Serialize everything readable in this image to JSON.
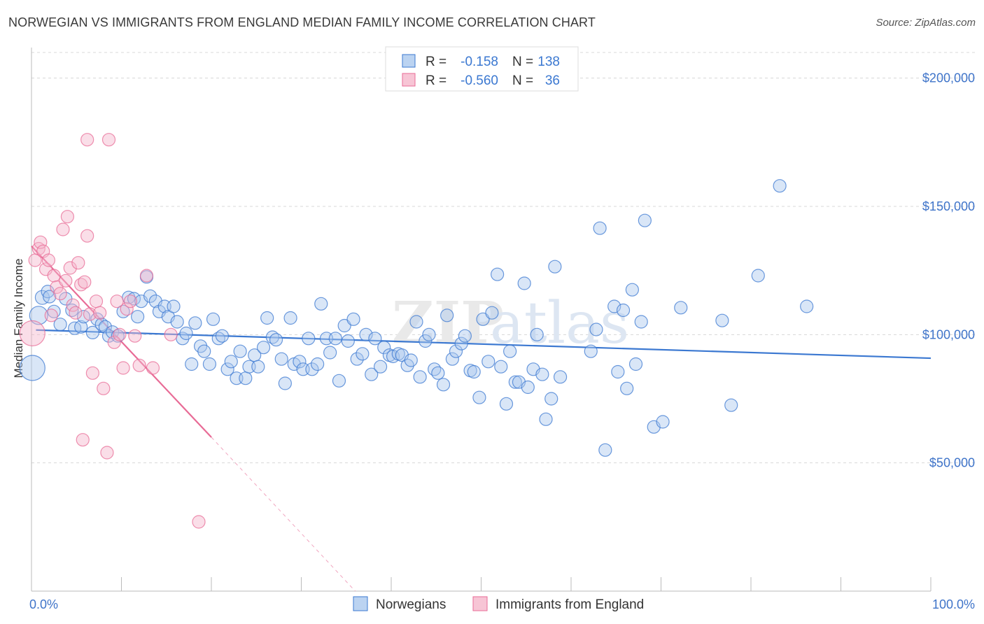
{
  "title": "NORWEGIAN VS IMMIGRANTS FROM ENGLAND MEDIAN FAMILY INCOME CORRELATION CHART",
  "source": "Source: ZipAtlas.com",
  "watermark": {
    "zip": "ZIP",
    "atlas": "atlas"
  },
  "colors": {
    "blue": "#3b78d1",
    "blue_fill": "#aac8ee",
    "pink": "#e86b96",
    "pink_fill": "#f5b6cb",
    "grid": "#d8d8d8",
    "axis_text": "#3f74c9"
  },
  "legend": {
    "rows": [
      {
        "r_label": "R =",
        "r_value": "-0.158",
        "n_label": "N =",
        "n_value": "138",
        "color": "blue"
      },
      {
        "r_label": "R =",
        "r_value": "-0.560",
        "n_label": "N =",
        "n_value": "36",
        "color": "pink"
      }
    ]
  },
  "bottom_legend": [
    {
      "label": "Norwegians",
      "color": "blue"
    },
    {
      "label": "Immigrants from England",
      "color": "pink"
    }
  ],
  "chart_data": {
    "type": "scatter",
    "title": "NORWEGIAN VS IMMIGRANTS FROM ENGLAND MEDIAN FAMILY INCOME CORRELATION CHART",
    "xlabel": "",
    "ylabel": "Median Family Income",
    "xlim": [
      0,
      100
    ],
    "ylim": [
      0,
      210000
    ],
    "x_tick_labels": [
      "0.0%",
      "100.0%"
    ],
    "y_ticks": [
      50000,
      100000,
      150000,
      200000
    ],
    "y_tick_labels": [
      "$50,000",
      "$100,000",
      "$150,000",
      "$200,000"
    ],
    "grid": true,
    "legend_position": "top-center",
    "series": [
      {
        "name": "Norwegians",
        "color": "blue",
        "trend": {
          "x": [
            0.5,
            100
          ],
          "y": [
            101800,
            90800
          ],
          "style": "solid"
        },
        "points": [
          [
            0.1,
            87000,
            18
          ],
          [
            0.8,
            107500,
            13
          ],
          [
            1.2,
            114500,
            10
          ],
          [
            1.8,
            116800,
            9
          ],
          [
            2.0,
            114800,
            9
          ],
          [
            2.5,
            109000,
            9
          ],
          [
            3.2,
            104000,
            9
          ],
          [
            3.8,
            114000,
            9
          ],
          [
            4.5,
            109500,
            9
          ],
          [
            4.8,
            102500,
            9
          ],
          [
            5.5,
            103000,
            9
          ],
          [
            5.8,
            107000,
            9
          ],
          [
            6.8,
            100800,
            9
          ],
          [
            7.3,
            106000,
            9
          ],
          [
            7.8,
            104000,
            9
          ],
          [
            8.2,
            103000,
            9
          ],
          [
            8.6,
            99500,
            9
          ],
          [
            9.0,
            101000,
            9
          ],
          [
            9.6,
            99500,
            9
          ],
          [
            10.2,
            109000,
            9
          ],
          [
            10.8,
            114500,
            9
          ],
          [
            11.4,
            114000,
            9
          ],
          [
            11.8,
            107000,
            9
          ],
          [
            12.2,
            113000,
            9
          ],
          [
            12.8,
            122500,
            9
          ],
          [
            13.2,
            115000,
            9
          ],
          [
            13.8,
            113000,
            9
          ],
          [
            14.2,
            109000,
            9
          ],
          [
            14.8,
            111000,
            9
          ],
          [
            15.2,
            107000,
            9
          ],
          [
            15.8,
            111000,
            9
          ],
          [
            16.2,
            105000,
            9
          ],
          [
            16.8,
            98500,
            9
          ],
          [
            17.2,
            100500,
            9
          ],
          [
            17.8,
            88500,
            9
          ],
          [
            18.2,
            104500,
            9
          ],
          [
            18.8,
            95500,
            9
          ],
          [
            19.2,
            93500,
            9
          ],
          [
            19.8,
            88500,
            9
          ],
          [
            20.2,
            106000,
            9
          ],
          [
            20.8,
            98500,
            9
          ],
          [
            21.2,
            99500,
            9
          ],
          [
            21.8,
            86500,
            9
          ],
          [
            22.2,
            89500,
            9
          ],
          [
            22.8,
            83000,
            9
          ],
          [
            23.2,
            93500,
            9
          ],
          [
            23.8,
            83000,
            9
          ],
          [
            24.2,
            87500,
            9
          ],
          [
            24.8,
            92000,
            9
          ],
          [
            25.2,
            87500,
            9
          ],
          [
            25.8,
            95000,
            9
          ],
          [
            26.2,
            106500,
            9
          ],
          [
            26.8,
            99000,
            9
          ],
          [
            27.2,
            98000,
            9
          ],
          [
            27.8,
            90500,
            9
          ],
          [
            28.2,
            81000,
            9
          ],
          [
            28.8,
            106500,
            9
          ],
          [
            29.2,
            88500,
            9
          ],
          [
            29.8,
            89500,
            9
          ],
          [
            30.2,
            86500,
            9
          ],
          [
            30.8,
            98500,
            9
          ],
          [
            31.2,
            86500,
            9
          ],
          [
            31.8,
            88500,
            9
          ],
          [
            32.2,
            112000,
            9
          ],
          [
            32.8,
            98500,
            9
          ],
          [
            33.2,
            93000,
            9
          ],
          [
            33.8,
            98500,
            9
          ],
          [
            34.2,
            82000,
            9
          ],
          [
            34.8,
            103500,
            9
          ],
          [
            35.2,
            97500,
            9
          ],
          [
            35.8,
            106000,
            9
          ],
          [
            36.2,
            90500,
            9
          ],
          [
            36.8,
            92500,
            9
          ],
          [
            37.2,
            100000,
            9
          ],
          [
            37.8,
            84500,
            9
          ],
          [
            38.2,
            98500,
            9
          ],
          [
            38.8,
            87500,
            9
          ],
          [
            39.2,
            95000,
            9
          ],
          [
            39.8,
            92000,
            9
          ],
          [
            40.2,
            91500,
            9
          ],
          [
            40.8,
            92500,
            9
          ],
          [
            41.2,
            92000,
            9
          ],
          [
            41.8,
            88000,
            9
          ],
          [
            42.2,
            90000,
            9
          ],
          [
            42.8,
            105000,
            9
          ],
          [
            43.2,
            83500,
            9
          ],
          [
            43.8,
            97500,
            9
          ],
          [
            44.2,
            100000,
            9
          ],
          [
            44.8,
            86500,
            9
          ],
          [
            45.2,
            85000,
            9
          ],
          [
            45.8,
            80500,
            9
          ],
          [
            46.2,
            107500,
            9
          ],
          [
            46.8,
            90500,
            9
          ],
          [
            47.2,
            93500,
            9
          ],
          [
            47.8,
            96500,
            9
          ],
          [
            48.2,
            99500,
            9
          ],
          [
            48.8,
            86000,
            9
          ],
          [
            49.2,
            85500,
            9
          ],
          [
            49.8,
            75500,
            9
          ],
          [
            50.2,
            106000,
            9
          ],
          [
            50.8,
            89500,
            9
          ],
          [
            51.2,
            108500,
            9
          ],
          [
            51.8,
            123500,
            9
          ],
          [
            52.2,
            87500,
            9
          ],
          [
            52.8,
            73000,
            9
          ],
          [
            53.2,
            93500,
            9
          ],
          [
            53.8,
            81500,
            9
          ],
          [
            54.2,
            81500,
            9
          ],
          [
            54.8,
            120000,
            9
          ],
          [
            55.2,
            79500,
            9
          ],
          [
            55.8,
            86500,
            9
          ],
          [
            56.2,
            100000,
            9
          ],
          [
            56.8,
            84500,
            9
          ],
          [
            57.2,
            67000,
            9
          ],
          [
            57.8,
            75000,
            9
          ],
          [
            58.2,
            126500,
            9
          ],
          [
            58.8,
            83500,
            9
          ],
          [
            62.2,
            93500,
            9
          ],
          [
            62.8,
            102000,
            9
          ],
          [
            63.2,
            141500,
            9
          ],
          [
            63.8,
            55000,
            9
          ],
          [
            64.8,
            111000,
            9
          ],
          [
            65.2,
            85500,
            9
          ],
          [
            65.8,
            109500,
            9
          ],
          [
            66.2,
            79000,
            9
          ],
          [
            66.8,
            117500,
            9
          ],
          [
            67.2,
            88500,
            9
          ],
          [
            67.8,
            105000,
            9
          ],
          [
            68.2,
            144500,
            9
          ],
          [
            69.2,
            64000,
            9
          ],
          [
            70.2,
            66000,
            9
          ],
          [
            72.2,
            110500,
            9
          ],
          [
            76.8,
            105500,
            9
          ],
          [
            77.8,
            72500,
            9
          ],
          [
            80.8,
            123000,
            9
          ],
          [
            83.2,
            158000,
            9
          ],
          [
            86.2,
            111000,
            9
          ]
        ]
      },
      {
        "name": "Immigrants from England",
        "color": "pink",
        "trend": {
          "x": [
            0,
            20
          ],
          "y": [
            134500,
            60000
          ],
          "style": "solid",
          "extended_x": [
            20,
            36
          ],
          "extended_y": [
            60000,
            0
          ],
          "extended_style": "dashed"
        },
        "points": [
          [
            0.1,
            100500,
            18
          ],
          [
            0.4,
            129000,
            9
          ],
          [
            0.8,
            133500,
            9
          ],
          [
            1.0,
            136000,
            9
          ],
          [
            1.3,
            132500,
            9
          ],
          [
            1.6,
            125500,
            9
          ],
          [
            1.9,
            129000,
            9
          ],
          [
            2.2,
            107500,
            9
          ],
          [
            2.5,
            123000,
            9
          ],
          [
            2.8,
            118500,
            9
          ],
          [
            3.2,
            116000,
            9
          ],
          [
            3.5,
            141000,
            9
          ],
          [
            3.8,
            121000,
            9
          ],
          [
            4.0,
            146000,
            9
          ],
          [
            4.3,
            126000,
            9
          ],
          [
            4.6,
            111500,
            9
          ],
          [
            4.9,
            108500,
            9
          ],
          [
            5.2,
            128000,
            9
          ],
          [
            5.5,
            119500,
            9
          ],
          [
            5.9,
            120500,
            9
          ],
          [
            6.2,
            138500,
            9
          ],
          [
            6.5,
            108000,
            9
          ],
          [
            6.8,
            85000,
            9
          ],
          [
            7.2,
            113000,
            9
          ],
          [
            7.6,
            108500,
            9
          ],
          [
            8.0,
            79000,
            9
          ],
          [
            8.4,
            54000,
            9
          ],
          [
            9.2,
            97000,
            9
          ],
          [
            9.5,
            113000,
            9
          ],
          [
            9.8,
            100000,
            9
          ],
          [
            10.2,
            87000,
            9
          ],
          [
            10.6,
            110000,
            9
          ],
          [
            11.0,
            113000,
            9
          ],
          [
            11.5,
            99500,
            9
          ],
          [
            12.0,
            88000,
            9
          ],
          [
            12.8,
            123000,
            9
          ],
          [
            13.5,
            87000,
            9
          ],
          [
            15.5,
            100000,
            9
          ],
          [
            5.7,
            59000,
            9
          ],
          [
            6.2,
            176000,
            9
          ],
          [
            8.6,
            176000,
            9
          ],
          [
            18.6,
            27000,
            9
          ]
        ]
      }
    ]
  }
}
